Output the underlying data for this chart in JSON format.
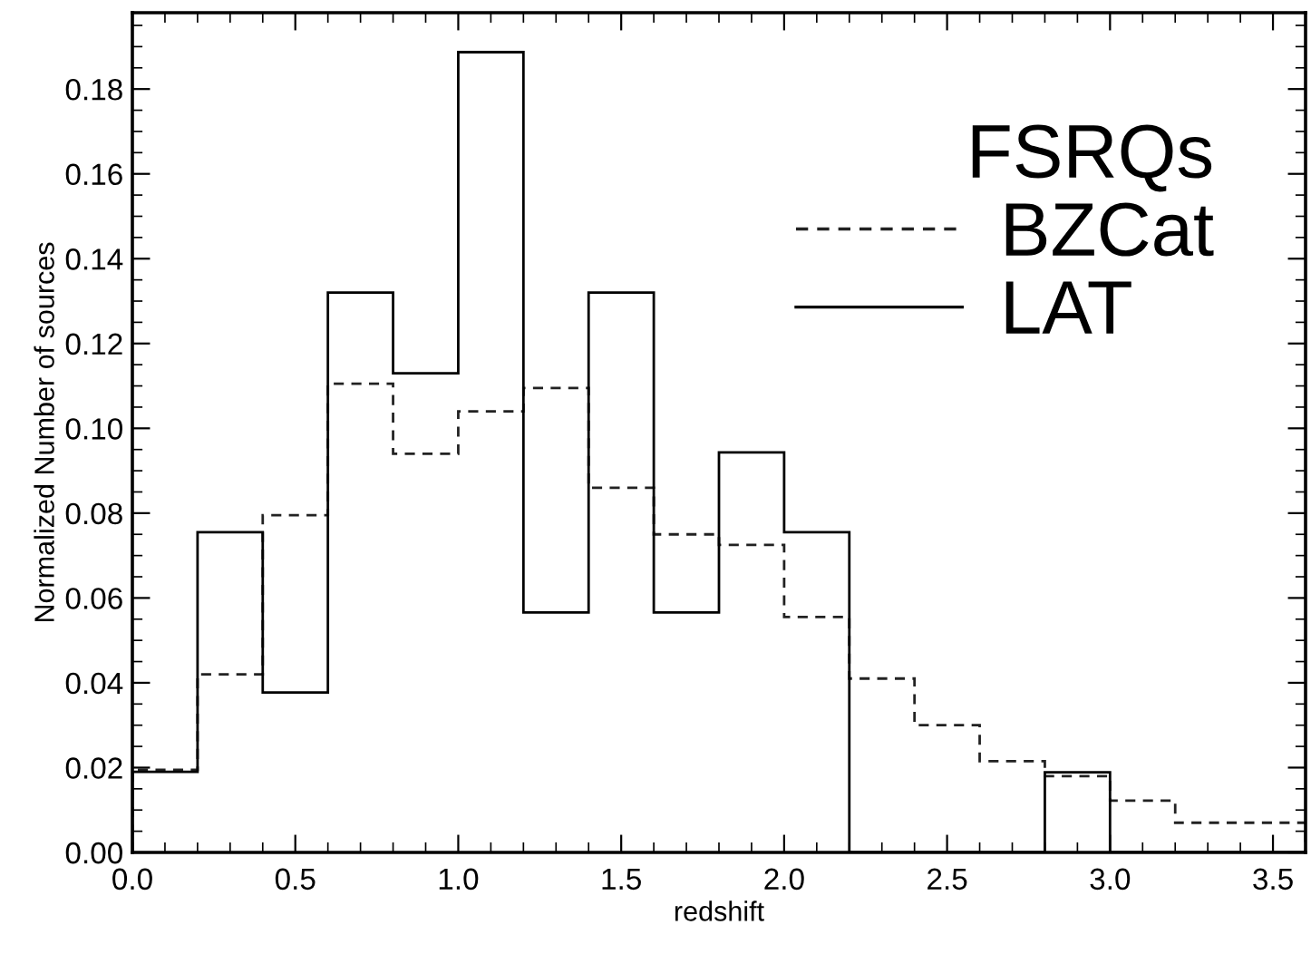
{
  "chart_data": {
    "type": "histogram",
    "xlabel": "redshift",
    "ylabel": "Normalized Number of sources",
    "legend_title": "FSRQs",
    "bins": [
      0.0,
      0.2,
      0.4,
      0.6,
      0.8,
      1.0,
      1.2,
      1.4,
      1.6,
      1.8,
      2.0,
      2.2,
      2.4,
      2.6,
      2.8,
      3.0,
      3.2,
      3.4,
      3.6
    ],
    "series": [
      {
        "name": "BZCat",
        "color": "#222222",
        "line_style": "dashed",
        "values": [
          0.0195,
          0.042,
          0.0795,
          0.1105,
          0.094,
          0.104,
          0.1095,
          0.086,
          0.075,
          0.0725,
          0.0555,
          0.041,
          0.03,
          0.0215,
          0.018,
          0.0122,
          0.007,
          0.007
        ]
      },
      {
        "name": "LAT",
        "color": "#000000",
        "line_style": "solid",
        "values": [
          0.019,
          0.0755,
          0.0377,
          0.132,
          0.113,
          0.1887,
          0.0566,
          0.132,
          0.0566,
          0.0943,
          0.0755,
          0,
          0,
          0,
          0.0189,
          0,
          0,
          0
        ]
      }
    ],
    "xlim": [
      0,
      3.6
    ],
    "ylim": [
      0,
      0.198
    ],
    "xticks": [
      {
        "value": 0,
        "label": "0.0"
      },
      0.5,
      {
        "value": 1,
        "label": "1.0"
      },
      1.5,
      {
        "value": 2,
        "label": "2.0"
      },
      2.5,
      {
        "value": 3,
        "label": "3.0"
      },
      3.5
    ],
    "yticks": [
      {
        "value": 0,
        "label": "0.00"
      },
      0.02,
      0.04,
      0.06,
      0.08,
      {
        "value": 0.1,
        "label": "0.10"
      },
      0.12,
      0.14,
      0.16,
      0.18
    ],
    "grid": false,
    "legend": "top right"
  }
}
